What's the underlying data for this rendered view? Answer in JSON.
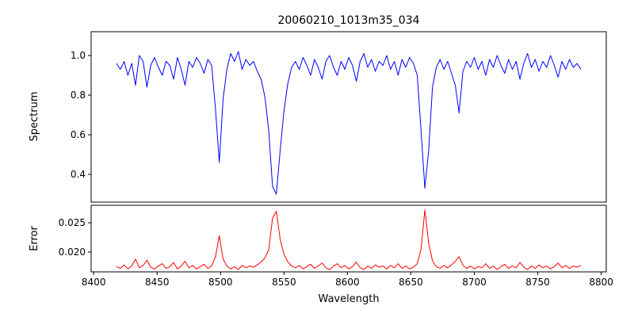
{
  "chart_data": {
    "type": "line",
    "title": "20060210_1013m35_034",
    "xlabel": "Wavelength",
    "xlim": [
      8398,
      8804
    ],
    "xticks": [
      8400,
      8450,
      8500,
      8550,
      8600,
      8650,
      8700,
      8750,
      8800
    ],
    "x": [
      8418,
      8421,
      8424,
      8427,
      8430,
      8433,
      8436,
      8439,
      8442,
      8445,
      8448,
      8451,
      8454,
      8457,
      8460,
      8463,
      8466,
      8469,
      8472,
      8475,
      8478,
      8481,
      8484,
      8487,
      8490,
      8493,
      8496,
      8499,
      8502,
      8505,
      8508,
      8511,
      8514,
      8517,
      8520,
      8523,
      8526,
      8529,
      8532,
      8535,
      8538,
      8541,
      8544,
      8547,
      8550,
      8553,
      8556,
      8559,
      8562,
      8565,
      8568,
      8571,
      8574,
      8577,
      8580,
      8583,
      8586,
      8589,
      8592,
      8595,
      8598,
      8601,
      8604,
      8607,
      8610,
      8613,
      8616,
      8619,
      8622,
      8625,
      8628,
      8631,
      8634,
      8637,
      8640,
      8643,
      8646,
      8649,
      8652,
      8655,
      8658,
      8661,
      8664,
      8667,
      8670,
      8673,
      8676,
      8679,
      8682,
      8685,
      8688,
      8691,
      8694,
      8697,
      8700,
      8703,
      8706,
      8709,
      8712,
      8715,
      8718,
      8721,
      8724,
      8727,
      8730,
      8733,
      8736,
      8739,
      8742,
      8745,
      8748,
      8751,
      8754,
      8757,
      8760,
      8763,
      8766,
      8769,
      8772,
      8775,
      8778,
      8781,
      8784
    ],
    "panels": [
      {
        "ylabel": "Spectrum",
        "ylim": [
          0.26,
          1.12
        ],
        "yticks": [
          0.4,
          0.6,
          0.8,
          1.0
        ],
        "ytick_labels": [
          "0.4",
          "0.6",
          "0.8",
          "1.0"
        ],
        "absorption_lines": [
          8498,
          8542,
          8662
        ],
        "series": [
          {
            "name": "spectrum",
            "color": "#0000ff",
            "values": [
              0.96,
              0.93,
              0.97,
              0.9,
              0.96,
              0.85,
              1.0,
              0.97,
              0.84,
              0.95,
              0.99,
              0.94,
              0.9,
              0.97,
              0.95,
              0.88,
              0.99,
              0.93,
              0.85,
              0.97,
              0.94,
              0.99,
              0.96,
              0.91,
              0.98,
              0.95,
              0.73,
              0.46,
              0.78,
              0.93,
              1.01,
              0.97,
              1.02,
              0.93,
              0.98,
              0.95,
              0.97,
              0.92,
              0.88,
              0.79,
              0.62,
              0.34,
              0.3,
              0.52,
              0.72,
              0.86,
              0.94,
              0.97,
              0.93,
              0.99,
              0.95,
              0.9,
              0.98,
              0.94,
              0.88,
              0.97,
              1.0,
              0.94,
              0.9,
              0.97,
              0.93,
              0.99,
              0.95,
              0.87,
              0.97,
              1.01,
              0.94,
              0.98,
              0.92,
              0.97,
              0.95,
              1.0,
              0.93,
              0.97,
              0.9,
              0.98,
              0.94,
              0.99,
              0.96,
              0.9,
              0.62,
              0.33,
              0.52,
              0.84,
              0.94,
              0.98,
              0.93,
              0.97,
              0.91,
              0.85,
              0.71,
              0.92,
              0.97,
              0.94,
              0.99,
              0.93,
              0.97,
              0.9,
              0.98,
              0.94,
              1.0,
              0.95,
              0.91,
              0.98,
              0.93,
              0.97,
              0.88,
              0.96,
              1.01,
              0.94,
              0.98,
              0.92,
              0.97,
              0.94,
              1.0,
              0.95,
              0.89,
              0.97,
              0.93,
              0.98,
              0.94,
              0.96,
              0.93
            ]
          }
        ]
      },
      {
        "ylabel": "Error",
        "ylim": [
          0.0166,
          0.028
        ],
        "yticks": [
          0.02,
          0.025
        ],
        "ytick_labels": [
          "0.020",
          "0.025"
        ],
        "series": [
          {
            "name": "error",
            "color": "#ff0000",
            "values": [
              0.0175,
              0.0172,
              0.0178,
              0.0171,
              0.0176,
              0.0188,
              0.0173,
              0.0177,
              0.0186,
              0.0174,
              0.0171,
              0.0176,
              0.018,
              0.0172,
              0.0175,
              0.0182,
              0.0171,
              0.0176,
              0.0184,
              0.0173,
              0.0177,
              0.0171,
              0.0175,
              0.0179,
              0.0172,
              0.0176,
              0.0192,
              0.0228,
              0.0188,
              0.0176,
              0.0171,
              0.0175,
              0.017,
              0.0177,
              0.0173,
              0.0176,
              0.0174,
              0.0178,
              0.0183,
              0.019,
              0.0204,
              0.0258,
              0.027,
              0.0222,
              0.0196,
              0.0183,
              0.0176,
              0.0173,
              0.0177,
              0.0171,
              0.0175,
              0.0179,
              0.0172,
              0.0176,
              0.0181,
              0.0173,
              0.017,
              0.0176,
              0.018,
              0.0173,
              0.0177,
              0.0171,
              0.0175,
              0.0183,
              0.0173,
              0.017,
              0.0176,
              0.0172,
              0.0178,
              0.0174,
              0.0176,
              0.0171,
              0.0177,
              0.0173,
              0.018,
              0.0172,
              0.0176,
              0.0171,
              0.0174,
              0.018,
              0.0205,
              0.0272,
              0.0215,
              0.0185,
              0.0175,
              0.0172,
              0.0177,
              0.0173,
              0.0178,
              0.0184,
              0.0192,
              0.0177,
              0.0172,
              0.0176,
              0.0171,
              0.0175,
              0.0173,
              0.018,
              0.0172,
              0.0176,
              0.017,
              0.0175,
              0.0179,
              0.0172,
              0.0176,
              0.0173,
              0.0182,
              0.0174,
              0.017,
              0.0176,
              0.0172,
              0.0178,
              0.0173,
              0.0176,
              0.0171,
              0.0175,
              0.0181,
              0.0173,
              0.0177,
              0.0172,
              0.0176,
              0.0174,
              0.0177
            ]
          }
        ]
      }
    ]
  }
}
